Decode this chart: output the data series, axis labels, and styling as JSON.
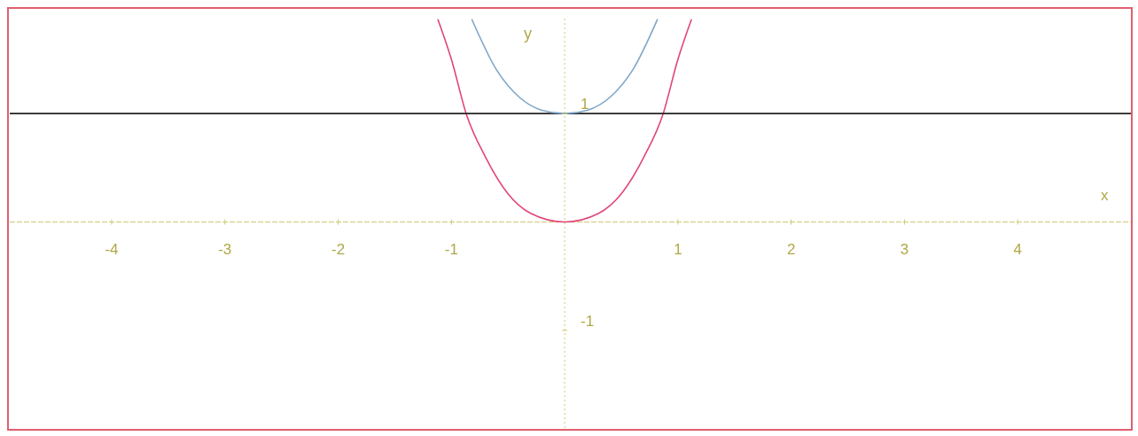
{
  "chart_data": {
    "type": "line",
    "xlabel": "x",
    "ylabel": "y",
    "xlim": [
      -4.9,
      5.0
    ],
    "ylim": [
      -1.9,
      1.9
    ],
    "xticks": [
      -4,
      -3,
      -2,
      -1,
      1,
      2,
      3,
      4
    ],
    "yticks": [
      -1,
      1
    ],
    "grid": false,
    "legend": false,
    "marker": "none",
    "line_style": "solid",
    "ref_lines": [
      {
        "axis": "y",
        "value": 0,
        "color": "#d0c870",
        "line_style": "dashed"
      },
      {
        "axis": "x",
        "value": 0,
        "color": "#d0c870",
        "line_style": "dotted"
      }
    ],
    "series": [
      {
        "color": "#e0457a",
        "x": [
          -1.12,
          -1,
          -0.87,
          -0.7,
          -0.5,
          -0.3,
          0,
          0.3,
          0.5,
          0.7,
          0.87,
          1,
          1.12
        ],
        "values": [
          1.87,
          1.5,
          1,
          0.6,
          0.26,
          0.08,
          0,
          0.08,
          0.26,
          0.6,
          1,
          1.5,
          1.87
        ]
      },
      {
        "color": "#222222",
        "x": [
          -4.9,
          5.0
        ],
        "values": [
          1,
          1
        ]
      },
      {
        "color": "#7fa6c8",
        "x": [
          -0.82,
          -0.6,
          -0.4,
          -0.2,
          0,
          0.2,
          0.4,
          0.6,
          0.82
        ],
        "values": [
          1.87,
          1.4,
          1.15,
          1.03,
          1,
          1.03,
          1.15,
          1.4,
          1.87
        ]
      }
    ]
  }
}
